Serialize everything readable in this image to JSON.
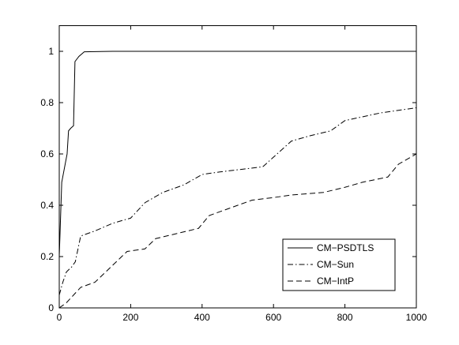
{
  "chart_data": {
    "type": "line",
    "xlim": [
      0,
      1000
    ],
    "xticks": [
      0,
      200,
      400,
      600,
      800,
      1000
    ],
    "ylim": [
      0,
      1.1
    ],
    "yticks": [
      0,
      0.2,
      0.4,
      0.6,
      0.8,
      1
    ],
    "grid": false,
    "legend": "lower right",
    "series": [
      {
        "name": "CM−PSDTLS",
        "color": "#000000",
        "style": "solid",
        "x": [
          0,
          7,
          22,
          26,
          32,
          40,
          44,
          55,
          70,
          150,
          1000
        ],
        "values": [
          0.2,
          0.49,
          0.6,
          0.69,
          0.7,
          0.71,
          0.96,
          0.98,
          0.998,
          1,
          1
        ]
      },
      {
        "name": "CM−Sun",
        "color": "#000000",
        "style": "dashdot",
        "x": [
          0,
          10,
          20,
          35,
          45,
          60,
          100,
          150,
          200,
          240,
          290,
          350,
          400,
          450,
          570,
          610,
          650,
          700,
          760,
          800,
          900,
          950,
          1000
        ],
        "values": [
          0.05,
          0.1,
          0.14,
          0.16,
          0.18,
          0.28,
          0.3,
          0.33,
          0.35,
          0.41,
          0.45,
          0.48,
          0.52,
          0.53,
          0.55,
          0.6,
          0.65,
          0.67,
          0.69,
          0.73,
          0.76,
          0.77,
          0.78
        ]
      },
      {
        "name": "CM−IntP",
        "color": "#000000",
        "style": "dashed",
        "x": [
          0,
          20,
          40,
          60,
          100,
          130,
          160,
          190,
          240,
          270,
          330,
          390,
          420,
          480,
          540,
          600,
          650,
          740,
          800,
          850,
          920,
          950,
          1000
        ],
        "values": [
          0,
          0.02,
          0.05,
          0.08,
          0.1,
          0.14,
          0.18,
          0.22,
          0.23,
          0.27,
          0.29,
          0.31,
          0.36,
          0.39,
          0.42,
          0.43,
          0.44,
          0.45,
          0.47,
          0.49,
          0.51,
          0.56,
          0.6
        ]
      }
    ]
  }
}
